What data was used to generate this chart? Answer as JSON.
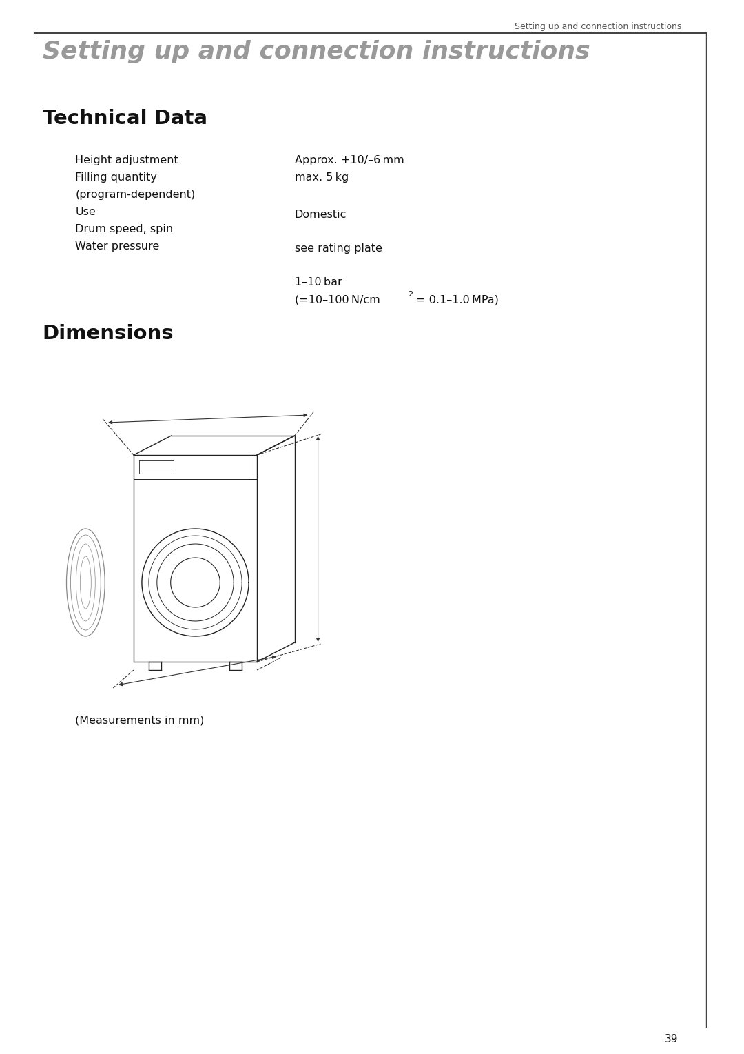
{
  "header_text": "Setting up and connection instructions",
  "section_title": "Setting up and connection instructions",
  "technical_data_title": "Technical Data",
  "dimensions_title": "Dimensions",
  "measurements_note": "(Measurements in mm)",
  "page_number": "39",
  "bg_color": "#ffffff",
  "text_color": "#111111",
  "header_color": "#555555",
  "section_title_color": "#999999",
  "border_color": "#444444",
  "line_color": "#333333",
  "machine_color": "#222222",
  "door_color": "#888888",
  "dim_color": "#333333"
}
